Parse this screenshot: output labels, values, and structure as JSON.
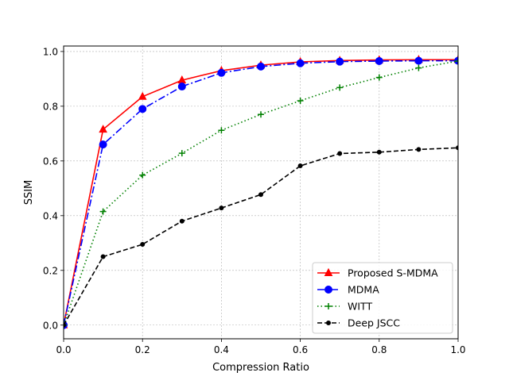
{
  "chart_data": {
    "type": "line",
    "title": "",
    "xlabel": "Compression Ratio",
    "ylabel": "SSIM",
    "xlim": [
      0.0,
      1.0
    ],
    "ylim": [
      -0.05,
      1.02
    ],
    "grid": true,
    "legend_position": "lower-right",
    "x_ticks": [
      0.0,
      0.2,
      0.4,
      0.6,
      0.8,
      1.0
    ],
    "x_tick_labels": [
      "0.0",
      "0.2",
      "0.4",
      "0.6",
      "0.8",
      "1.0"
    ],
    "y_ticks": [
      0.0,
      0.2,
      0.4,
      0.6,
      0.8,
      1.0
    ],
    "y_tick_labels": [
      "0.0",
      "0.2",
      "0.4",
      "0.6",
      "0.8",
      "1.0"
    ],
    "series": [
      {
        "name": "Proposed S-MDMA",
        "color": "#ff0000",
        "line_style": "solid",
        "marker": "triangle-up",
        "x": [
          0.0,
          0.1,
          0.2,
          0.3,
          0.4,
          0.5,
          0.6,
          0.7,
          0.8,
          0.9,
          1.0
        ],
        "y": [
          0.0,
          0.715,
          0.835,
          0.895,
          0.93,
          0.95,
          0.962,
          0.967,
          0.969,
          0.97,
          0.97
        ]
      },
      {
        "name": "MDMA",
        "color": "#0000ff",
        "line_style": "dashdot",
        "marker": "circle",
        "x": [
          0.0,
          0.1,
          0.2,
          0.3,
          0.4,
          0.5,
          0.6,
          0.7,
          0.8,
          0.9,
          1.0
        ],
        "y": [
          0.0,
          0.66,
          0.79,
          0.872,
          0.922,
          0.945,
          0.957,
          0.963,
          0.965,
          0.966,
          0.966
        ]
      },
      {
        "name": "WITT",
        "color": "#008000",
        "line_style": "dotted",
        "marker": "plus",
        "x": [
          0.0,
          0.1,
          0.2,
          0.3,
          0.4,
          0.5,
          0.6,
          0.7,
          0.8,
          0.9,
          1.0
        ],
        "y": [
          0.0,
          0.415,
          0.548,
          0.628,
          0.712,
          0.77,
          0.82,
          0.868,
          0.905,
          0.94,
          0.965
        ]
      },
      {
        "name": "Deep JSCC",
        "color": "#000000",
        "line_style": "dashed",
        "marker": "dot",
        "x": [
          0.0,
          0.1,
          0.2,
          0.3,
          0.4,
          0.5,
          0.6,
          0.7,
          0.8,
          0.9,
          1.0
        ],
        "y": [
          0.0,
          0.25,
          0.295,
          0.38,
          0.428,
          0.477,
          0.582,
          0.627,
          0.632,
          0.642,
          0.648
        ]
      }
    ]
  }
}
